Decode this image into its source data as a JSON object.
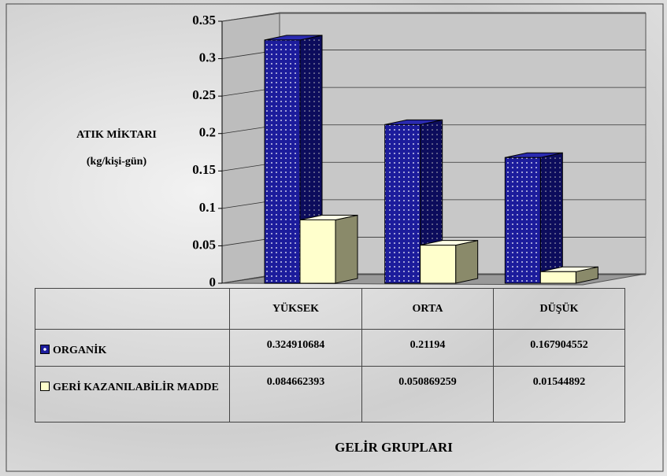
{
  "chart_data": {
    "type": "bar3d",
    "ylabel": [
      "ATIK MİKTARI",
      "(kg/kişi-gün)"
    ],
    "xlabel": "GELİR GRUPLARI",
    "categories": [
      "YÜKSEK",
      "ORTA",
      "DÜŞÜK"
    ],
    "series": [
      {
        "name": "ORGANİK",
        "color": "#1c1c9c",
        "values": [
          0.324910684,
          0.21194,
          0.167904552
        ]
      },
      {
        "name": "GERİ KAZANILABİLİR MADDE",
        "color": "#ffffcc",
        "values": [
          0.084662393,
          0.050869259,
          0.01544892
        ]
      }
    ],
    "ylim": [
      0,
      0.35
    ],
    "yticks": [
      0,
      0.05,
      0.1,
      0.15,
      0.2,
      0.25,
      0.3,
      0.35
    ],
    "grid": true
  }
}
